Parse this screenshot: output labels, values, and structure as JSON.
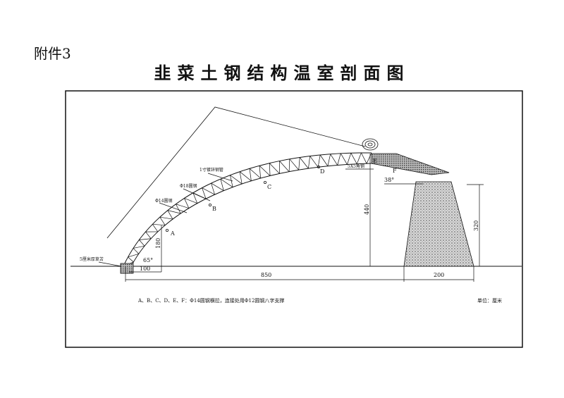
{
  "header": {
    "attachment": "附件3",
    "title": "韭菜土钢结构温室剖面图"
  },
  "labels": {
    "pipe": "1寸镀锌钢管",
    "rod18": "Φ18圆钢",
    "rod14": "Φ14圆钢",
    "angle": "5X5角钢",
    "mat": "5厘米厚草苫",
    "A": "A",
    "B": "B",
    "C": "C",
    "D": "D",
    "E": "E",
    "F": "F",
    "angle65": "65°",
    "angle38": "38°"
  },
  "dimensions": {
    "span": "850",
    "base": "100",
    "wall": "200",
    "rise": "180",
    "height": "440",
    "wall_height": "320"
  },
  "footnote": "A、B、C、D、E、F：Φ14圆钢横拉，连接处用Φ12圆钢八字支撑",
  "unit": "单位：厘米"
}
